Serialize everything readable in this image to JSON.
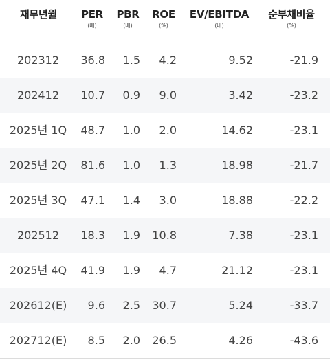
{
  "headers": [
    {
      "title": "재무년월",
      "unit": ""
    },
    {
      "title": "PER",
      "unit": "(배)"
    },
    {
      "title": "PBR",
      "unit": "(배)"
    },
    {
      "title": "ROE",
      "unit": "(%)"
    },
    {
      "title": "EV/EBITDA",
      "unit": "(배)"
    },
    {
      "title": "순부채비율",
      "unit": "(%)"
    }
  ],
  "rows": [
    [
      "202312",
      "36.8",
      "1.5",
      "4.2",
      "9.52",
      "-21.9"
    ],
    [
      "202412",
      "10.7",
      "0.9",
      "9.0",
      "3.42",
      "-23.2"
    ],
    [
      "2025년 1Q",
      "48.7",
      "1.0",
      "2.0",
      "14.62",
      "-23.1"
    ],
    [
      "2025년 2Q",
      "81.6",
      "1.0",
      "1.3",
      "18.98",
      "-21.7"
    ],
    [
      "2025년 3Q",
      "47.1",
      "1.4",
      "3.0",
      "18.88",
      "-22.2"
    ],
    [
      "202512",
      "18.3",
      "1.9",
      "10.8",
      "7.38",
      "-23.1"
    ],
    [
      "2025년 4Q",
      "41.9",
      "1.9",
      "4.7",
      "21.12",
      "-23.1"
    ],
    [
      "202612(E)",
      "9.6",
      "2.5",
      "30.7",
      "5.24",
      "-33.7"
    ],
    [
      "202712(E)",
      "8.5",
      "2.0",
      "26.5",
      "4.26",
      "-43.6"
    ]
  ]
}
